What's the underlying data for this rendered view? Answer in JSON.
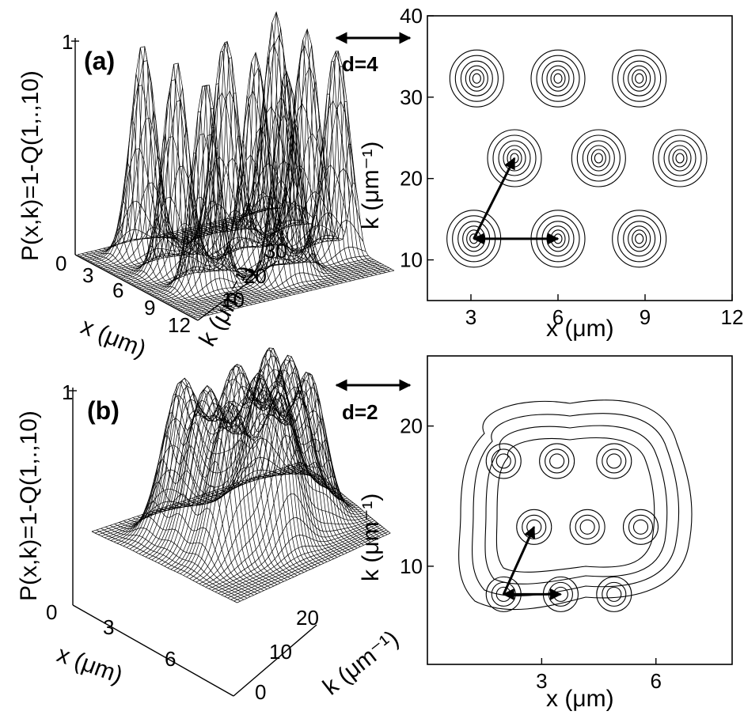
{
  "chart_data": [
    {
      "panel": "(a)",
      "type": "surface",
      "zlabel": "P(x,k)=1-Q(1,.,10)",
      "xlabel": "x (μm)",
      "ylabel": "k (μm⁻¹)",
      "ztick_labels": [
        "0",
        "1"
      ],
      "xtick_labels": [
        "3",
        "6",
        "9",
        "12"
      ],
      "ytick_labels": [
        "10",
        "20",
        "30"
      ],
      "peaks": [
        {
          "x": 3.0,
          "k": 12.5
        },
        {
          "x": 6.0,
          "k": 12.5
        },
        {
          "x": 8.8,
          "k": 12.5
        },
        {
          "x": 4.5,
          "k": 22.5
        },
        {
          "x": 7.3,
          "k": 22.5
        },
        {
          "x": 10.2,
          "k": 22.5
        },
        {
          "x": 3.2,
          "k": 32.3
        },
        {
          "x": 6.0,
          "k": 32.3
        },
        {
          "x": 8.8,
          "k": 32.3
        }
      ],
      "zmax": 1
    },
    {
      "panel": "(a)",
      "type": "contour",
      "xlabel": "x (μm)",
      "ylabel": "k (μm⁻¹)",
      "xlim": [
        1.5,
        12
      ],
      "ylim": [
        5,
        40
      ],
      "xticks": [
        3,
        6,
        9,
        12
      ],
      "yticks": [
        10,
        20,
        30,
        40
      ],
      "annotation": "d=4",
      "centers": [
        {
          "x": 3.2,
          "k": 32.3
        },
        {
          "x": 6.0,
          "k": 32.3
        },
        {
          "x": 8.8,
          "k": 32.3
        },
        {
          "x": 4.5,
          "k": 22.5
        },
        {
          "x": 7.4,
          "k": 22.5
        },
        {
          "x": 10.2,
          "k": 22.5
        },
        {
          "x": 3.1,
          "k": 12.6
        },
        {
          "x": 6.0,
          "k": 12.6
        },
        {
          "x": 8.8,
          "k": 12.6
        }
      ],
      "arrows": [
        {
          "from": {
            "x": 3.1,
            "k": 12.6
          },
          "to": {
            "x": 6.0,
            "k": 12.6
          }
        },
        {
          "from": {
            "x": 3.1,
            "k": 12.6
          },
          "to": {
            "x": 4.5,
            "k": 22.5
          }
        }
      ]
    },
    {
      "panel": "(b)",
      "type": "surface",
      "zlabel": "P(x,k)=1-Q(1,.,10)",
      "xlabel": "x (μm)",
      "ylabel": "k (μm⁻¹)",
      "ztick_labels": [
        "0",
        "1"
      ],
      "xtick_labels": [
        "3",
        "6"
      ],
      "ytick_labels": [
        "0",
        "10",
        "20"
      ],
      "peaks": [
        {
          "x": 2.0,
          "k": 8
        },
        {
          "x": 3.5,
          "k": 8
        },
        {
          "x": 5.0,
          "k": 8
        },
        {
          "x": 2.7,
          "k": 13
        },
        {
          "x": 4.2,
          "k": 13
        },
        {
          "x": 5.7,
          "k": 13
        },
        {
          "x": 2.0,
          "k": 18
        },
        {
          "x": 3.5,
          "k": 18
        },
        {
          "x": 5.0,
          "k": 18
        }
      ],
      "zmax": 1
    },
    {
      "panel": "(b)",
      "type": "contour",
      "xlabel": "x (μm)",
      "ylabel": "k (μm⁻¹)",
      "xlim": [
        0,
        8
      ],
      "ylim": [
        3,
        25
      ],
      "xticks": [
        3,
        6
      ],
      "yticks": [
        10,
        20
      ],
      "annotation": "d=2",
      "centers": [
        {
          "x": 2.0,
          "k": 17.5
        },
        {
          "x": 3.4,
          "k": 17.5
        },
        {
          "x": 4.9,
          "k": 17.5
        },
        {
          "x": 2.8,
          "k": 12.8
        },
        {
          "x": 4.2,
          "k": 12.8
        },
        {
          "x": 5.6,
          "k": 12.8
        },
        {
          "x": 2.0,
          "k": 8.0
        },
        {
          "x": 3.5,
          "k": 8.0
        },
        {
          "x": 4.9,
          "k": 8.0
        }
      ],
      "arrows": [
        {
          "from": {
            "x": 2.0,
            "k": 8.0
          },
          "to": {
            "x": 3.5,
            "k": 8.0
          }
        },
        {
          "from": {
            "x": 2.0,
            "k": 8.0
          },
          "to": {
            "x": 2.8,
            "k": 12.8
          }
        }
      ]
    }
  ]
}
